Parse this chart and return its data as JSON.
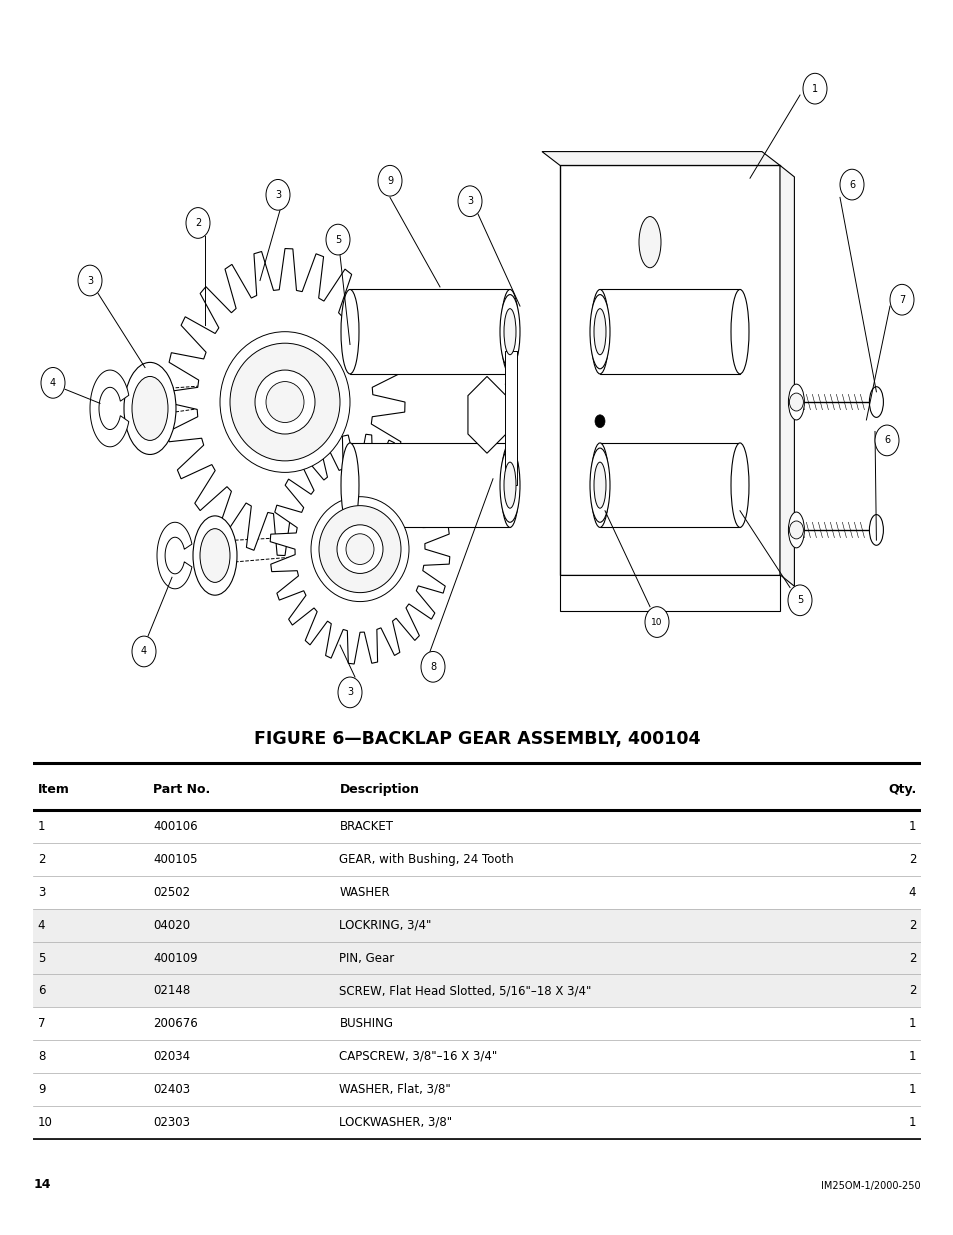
{
  "title": "FIGURE 6—BACKLAP GEAR ASSEMBLY, 400104",
  "page_number": "14",
  "footer_text": "IM25OM-1/2000-250",
  "bg_color": "#ffffff",
  "table_headers": [
    "Item",
    "Part No.",
    "Description",
    "Qty."
  ],
  "table_rows": [
    [
      "1",
      "400106",
      "BRACKET",
      "1"
    ],
    [
      "2",
      "400105",
      "GEAR, with Bushing, 24 Tooth",
      "2"
    ],
    [
      "3",
      "02502",
      "WASHER",
      "4"
    ],
    [
      "4",
      "04020",
      "LOCKRING, 3/4\"",
      "2"
    ],
    [
      "5",
      "400109",
      "PIN, Gear",
      "2"
    ],
    [
      "6",
      "02148",
      "SCREW, Flat Head Slotted, 5/16\"–18 X 3/4\"",
      "2"
    ],
    [
      "7",
      "200676",
      "BUSHING",
      "1"
    ],
    [
      "8",
      "02034",
      "CAPSCREW, 3/8\"–16 X 3/4\"",
      "1"
    ],
    [
      "9",
      "02403",
      "WASHER, Flat, 3/8\"",
      "1"
    ],
    [
      "10",
      "02303",
      "LOCKWASHER, 3/8\"",
      "1"
    ]
  ],
  "lw": 0.8,
  "ec": "#000000",
  "fc_white": "#ffffff",
  "fc_light": "#f5f5f5"
}
